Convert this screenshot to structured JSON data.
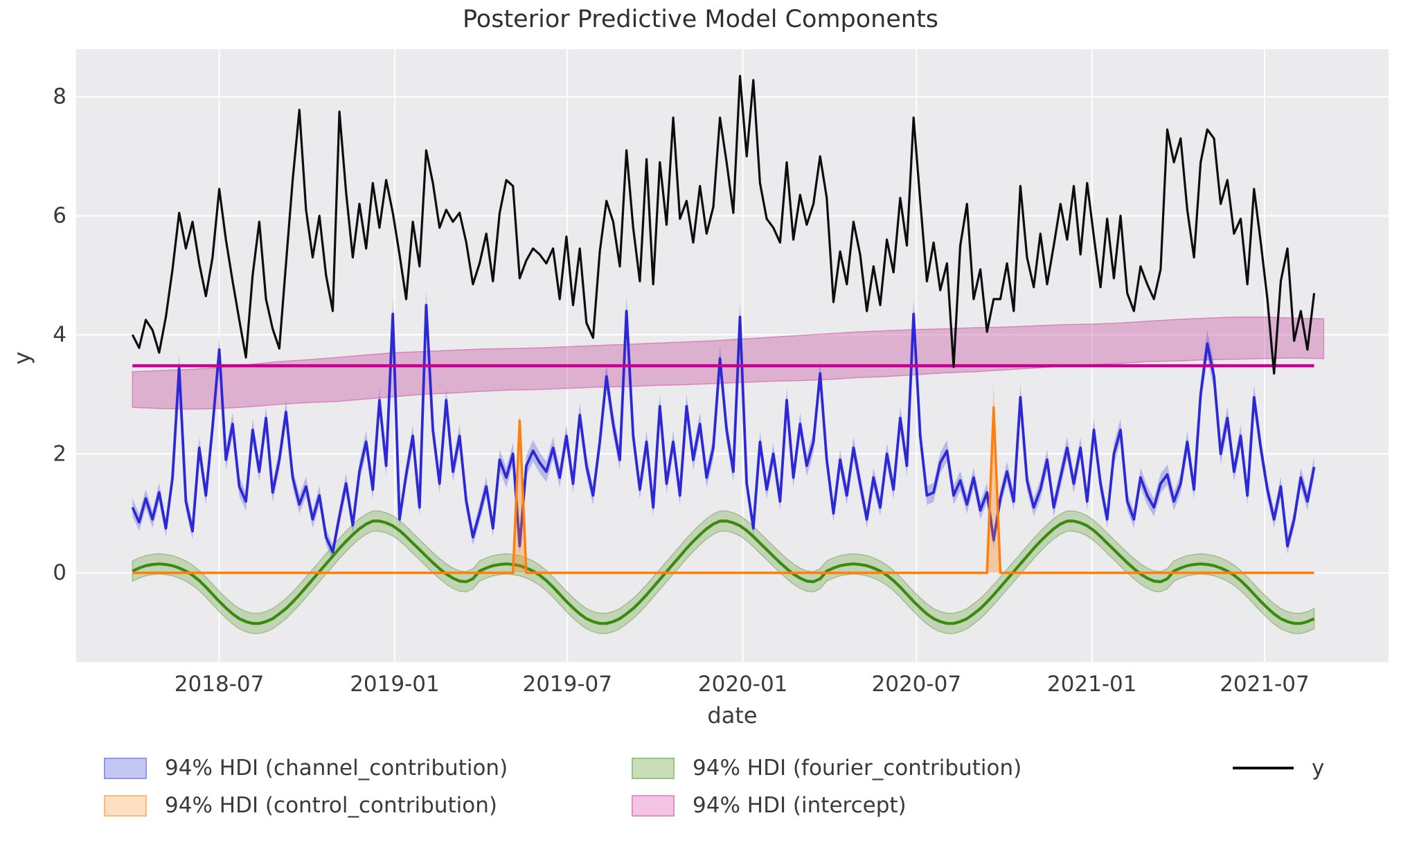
{
  "figure": {
    "title": "Posterior Predictive Model Components",
    "xlabel": "date",
    "ylabel": "y",
    "plot_bg": "#ebebed",
    "grid_color": "#ffffff",
    "tick_color": "#3a3a3a"
  },
  "chart_data": {
    "type": "line",
    "title": "Posterior Predictive Model Components",
    "xlabel": "date",
    "ylabel": "y",
    "grid": true,
    "legend_position": "below",
    "x_domain": [
      "2018-02-01",
      "2021-11-08"
    ],
    "ylim": [
      -1.5,
      8.8
    ],
    "y_ticks": [
      0,
      2,
      4,
      6,
      8
    ],
    "x_ticks": [
      {
        "date": "2018-07-01",
        "label": "2018-07"
      },
      {
        "date": "2019-01-01",
        "label": "2019-01"
      },
      {
        "date": "2019-07-01",
        "label": "2019-07"
      },
      {
        "date": "2020-01-01",
        "label": "2020-01"
      },
      {
        "date": "2020-07-01",
        "label": "2020-07"
      },
      {
        "date": "2021-01-01",
        "label": "2021-01"
      },
      {
        "date": "2021-07-01",
        "label": "2021-07"
      }
    ],
    "sampling": {
      "start_date": "2018-04-01",
      "freq_days": 7,
      "n_points": 178
    },
    "series": {
      "y": {
        "name": "y",
        "color": "#0d0d0d",
        "linewidth": 3.2,
        "values": [
          4.0,
          3.78,
          4.25,
          4.08,
          3.7,
          4.3,
          5.1,
          6.05,
          5.45,
          5.9,
          5.2,
          4.65,
          5.3,
          6.45,
          5.6,
          4.9,
          4.25,
          3.62,
          5.0,
          5.9,
          4.6,
          4.1,
          3.77,
          5.2,
          6.6,
          7.78,
          6.1,
          5.3,
          6.0,
          5.0,
          4.4,
          7.75,
          6.4,
          5.3,
          6.2,
          5.45,
          6.55,
          5.8,
          6.6,
          6.05,
          5.35,
          4.6,
          5.9,
          5.15,
          7.1,
          6.55,
          5.8,
          6.1,
          5.9,
          6.05,
          5.55,
          4.85,
          5.2,
          5.7,
          4.9,
          6.05,
          6.6,
          6.5,
          4.95,
          5.25,
          5.45,
          5.35,
          5.2,
          5.45,
          4.6,
          5.65,
          4.5,
          5.45,
          4.2,
          3.95,
          5.4,
          6.25,
          5.9,
          5.15,
          7.1,
          5.8,
          4.9,
          6.95,
          4.85,
          6.9,
          5.85,
          7.65,
          5.95,
          6.25,
          5.55,
          6.5,
          5.7,
          6.15,
          7.65,
          6.9,
          6.05,
          8.35,
          7.0,
          8.28,
          6.55,
          5.95,
          5.8,
          5.55,
          6.9,
          5.6,
          6.35,
          5.85,
          6.2,
          7.0,
          6.3,
          4.55,
          5.4,
          4.85,
          5.9,
          5.35,
          4.4,
          5.15,
          4.5,
          5.6,
          5.05,
          6.3,
          5.5,
          7.65,
          6.25,
          4.9,
          5.55,
          4.75,
          5.2,
          3.46,
          5.5,
          6.2,
          4.6,
          5.1,
          4.05,
          4.6,
          4.6,
          5.2,
          4.4,
          6.5,
          5.3,
          4.8,
          5.7,
          4.85,
          5.5,
          6.2,
          5.6,
          6.5,
          5.35,
          6.55,
          5.65,
          4.8,
          5.95,
          4.95,
          6.0,
          4.7,
          4.4,
          5.15,
          4.85,
          4.6,
          5.1,
          7.45,
          6.9,
          7.3,
          6.1,
          5.3,
          6.9,
          7.45,
          7.3,
          6.2,
          6.6,
          5.7,
          5.95,
          4.85,
          6.45,
          5.55,
          4.6,
          3.35,
          4.9,
          5.45,
          3.9,
          4.4,
          3.75,
          4.7
        ]
      },
      "channel_contribution": {
        "name": "channel_contribution",
        "color": "#2c28d6",
        "band_color": "rgba(70,70,220,0.30)",
        "hdi_label": "94% HDI (channel_contribution)",
        "hdi_half": 0.12,
        "linewidth": 3.8,
        "values": [
          1.1,
          0.85,
          1.25,
          0.9,
          1.35,
          0.75,
          1.6,
          3.45,
          1.2,
          0.7,
          2.1,
          1.3,
          2.45,
          3.75,
          1.9,
          2.5,
          1.45,
          1.2,
          2.4,
          1.7,
          2.6,
          1.35,
          1.9,
          2.7,
          1.6,
          1.15,
          1.45,
          0.9,
          1.3,
          0.6,
          0.35,
          0.95,
          1.5,
          0.8,
          1.7,
          2.2,
          1.4,
          2.9,
          1.8,
          4.35,
          0.9,
          1.65,
          2.3,
          1.1,
          4.5,
          2.4,
          1.5,
          2.9,
          1.7,
          2.3,
          1.2,
          0.6,
          1.0,
          1.45,
          0.75,
          1.9,
          1.6,
          2.0,
          0.45,
          1.8,
          2.05,
          1.85,
          1.7,
          2.1,
          1.6,
          2.3,
          1.5,
          2.65,
          1.8,
          1.3,
          2.2,
          3.3,
          2.5,
          1.9,
          4.4,
          2.3,
          1.4,
          2.2,
          1.1,
          2.8,
          1.5,
          2.2,
          1.3,
          2.8,
          1.9,
          2.5,
          1.6,
          2.1,
          3.6,
          2.4,
          1.7,
          4.3,
          1.5,
          0.75,
          2.2,
          1.4,
          2.0,
          1.2,
          2.9,
          1.6,
          2.5,
          1.8,
          2.2,
          3.35,
          1.9,
          1.0,
          1.9,
          1.3,
          2.1,
          1.5,
          0.9,
          1.6,
          1.1,
          2.0,
          1.4,
          2.6,
          1.8,
          4.35,
          2.3,
          1.3,
          1.35,
          1.85,
          2.05,
          1.3,
          1.55,
          1.15,
          1.6,
          1.05,
          1.35,
          0.55,
          1.25,
          1.7,
          1.2,
          2.95,
          1.55,
          1.1,
          1.4,
          1.9,
          1.1,
          1.6,
          2.1,
          1.5,
          2.1,
          1.2,
          2.4,
          1.5,
          0.9,
          2.0,
          2.4,
          1.2,
          0.9,
          1.6,
          1.3,
          1.1,
          1.5,
          1.65,
          1.2,
          1.5,
          2.2,
          1.4,
          3.0,
          3.85,
          3.3,
          2.0,
          2.6,
          1.7,
          2.3,
          1.3,
          2.95,
          2.1,
          1.4,
          0.9,
          1.45,
          0.45,
          0.9,
          1.6,
          1.2,
          1.78
        ]
      },
      "control_contribution": {
        "name": "control_contribution",
        "color": "#ff7f0e",
        "band_color": "rgba(255,127,14,0.33)",
        "hdi_label": "94% HDI (control_contribution)",
        "baseline": 0,
        "linewidth": 3.5,
        "spikes": [
          {
            "index": 58,
            "date": "2019-05-12",
            "value": 2.56,
            "hdi_lower": 2.35,
            "hdi_upper": 2.72
          },
          {
            "index": 129,
            "date": "2020-09-20",
            "value": 2.78,
            "hdi_lower": 2.5,
            "hdi_upper": 3.2
          }
        ]
      },
      "fourier_contribution": {
        "name": "fourier_contribution",
        "color": "#3a8a0b",
        "band_color": "rgba(100,160,55,0.30)",
        "hdi_label": "94% HDI (fourier_contribution)",
        "hdi_half": 0.17,
        "linewidth": 4.2,
        "values": [
          0.03,
          0.08,
          0.12,
          0.14,
          0.15,
          0.14,
          0.12,
          0.08,
          0.03,
          -0.04,
          -0.13,
          -0.24,
          -0.36,
          -0.48,
          -0.59,
          -0.69,
          -0.77,
          -0.82,
          -0.85,
          -0.85,
          -0.82,
          -0.77,
          -0.69,
          -0.6,
          -0.49,
          -0.37,
          -0.24,
          -0.11,
          0.02,
          0.15,
          0.28,
          0.41,
          0.53,
          0.64,
          0.74,
          0.82,
          0.87,
          0.87,
          0.84,
          0.79,
          0.71,
          0.61,
          0.5,
          0.39,
          0.28,
          0.17,
          0.07,
          -0.02,
          -0.09,
          -0.14,
          -0.15,
          -0.1,
          0.03,
          0.08,
          0.12,
          0.14,
          0.15,
          0.14,
          0.12,
          0.08,
          0.03,
          -0.04,
          -0.13,
          -0.24,
          -0.36,
          -0.48,
          -0.59,
          -0.69,
          -0.77,
          -0.82,
          -0.85,
          -0.85,
          -0.82,
          -0.77,
          -0.69,
          -0.6,
          -0.49,
          -0.37,
          -0.24,
          -0.11,
          0.02,
          0.15,
          0.28,
          0.41,
          0.53,
          0.64,
          0.74,
          0.82,
          0.87,
          0.87,
          0.84,
          0.79,
          0.71,
          0.61,
          0.5,
          0.39,
          0.28,
          0.17,
          0.07,
          -0.02,
          -0.09,
          -0.14,
          -0.15,
          -0.1,
          0.03,
          0.08,
          0.12,
          0.14,
          0.15,
          0.14,
          0.12,
          0.08,
          0.03,
          -0.04,
          -0.13,
          -0.24,
          -0.36,
          -0.48,
          -0.59,
          -0.69,
          -0.77,
          -0.82,
          -0.85,
          -0.85,
          -0.82,
          -0.77,
          -0.69,
          -0.6,
          -0.49,
          -0.37,
          -0.24,
          -0.11,
          0.02,
          0.15,
          0.28,
          0.41,
          0.53,
          0.64,
          0.74,
          0.82,
          0.87,
          0.87,
          0.84,
          0.79,
          0.71,
          0.61,
          0.5,
          0.39,
          0.28,
          0.17,
          0.07,
          -0.02,
          -0.09,
          -0.14,
          -0.15,
          -0.1,
          0.03,
          0.08,
          0.12,
          0.14,
          0.15,
          0.14,
          0.12,
          0.08,
          0.03,
          -0.04,
          -0.13,
          -0.24,
          -0.36,
          -0.48,
          -0.59,
          -0.69,
          -0.77,
          -0.82,
          -0.85,
          -0.85,
          -0.82,
          -0.77
        ]
      },
      "intercept": {
        "name": "intercept",
        "color": "#c4008f",
        "band_color": "rgba(205,95,170,0.42)",
        "hdi_label": "94% HDI (intercept)",
        "mean": 3.48,
        "linewidth": 4.5,
        "hdi": {
          "start_date": "2018-04-01",
          "freq_months": 1,
          "lower": [
            2.78,
            2.76,
            2.75,
            2.76,
            2.79,
            2.83,
            2.86,
            2.88,
            2.92,
            2.96,
            3.0,
            3.02,
            3.05,
            3.07,
            3.08,
            3.1,
            3.12,
            3.13,
            3.15,
            3.16,
            3.18,
            3.2,
            3.22,
            3.23,
            3.25,
            3.28,
            3.3,
            3.33,
            3.36,
            3.38,
            3.41,
            3.44,
            3.47,
            3.5,
            3.52,
            3.55,
            3.56,
            3.58,
            3.59,
            3.6,
            3.61,
            3.6
          ],
          "upper": [
            3.38,
            3.4,
            3.42,
            3.45,
            3.5,
            3.55,
            3.58,
            3.62,
            3.66,
            3.7,
            3.72,
            3.74,
            3.76,
            3.77,
            3.78,
            3.8,
            3.82,
            3.84,
            3.86,
            3.88,
            3.9,
            3.93,
            3.96,
            3.99,
            4.02,
            4.05,
            4.07,
            4.09,
            4.1,
            4.12,
            4.13,
            4.15,
            4.17,
            4.18,
            4.2,
            4.23,
            4.26,
            4.28,
            4.3,
            4.3,
            4.28,
            4.27
          ]
        }
      }
    },
    "legend": [
      {
        "type": "patch",
        "label": "94% HDI (channel_contribution)",
        "swatch_fill": "#c4c6f4",
        "swatch_border": "#9397ea"
      },
      {
        "type": "patch",
        "label": "94% HDI (control_contribution)",
        "swatch_fill": "#ffdfc2",
        "swatch_border": "#ffb87e"
      },
      {
        "type": "patch",
        "label": "94% HDI (fourier_contribution)",
        "swatch_fill": "#c8ddb8",
        "swatch_border": "#97c383"
      },
      {
        "type": "patch",
        "label": "94% HDI (intercept)",
        "swatch_fill": "#f3c4e3",
        "swatch_border": "#e48fc7"
      },
      {
        "type": "line",
        "label": "y",
        "color": "#0d0d0d"
      }
    ]
  }
}
